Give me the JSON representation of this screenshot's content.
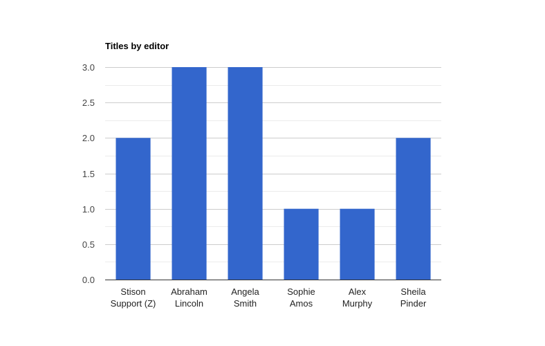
{
  "chart_data": {
    "type": "bar",
    "title": "Titles by editor",
    "xlabel": "",
    "ylabel": "",
    "categories": [
      [
        "Stison",
        "Support (Z)"
      ],
      [
        "Abraham",
        "Lincoln"
      ],
      [
        "Angela",
        "Smith"
      ],
      [
        "Sophie",
        "Amos"
      ],
      [
        "Alex",
        "Murphy"
      ],
      [
        "Sheila",
        "Pinder"
      ]
    ],
    "values": [
      2,
      3,
      3,
      1,
      1,
      2
    ],
    "ylim": [
      0,
      3
    ],
    "yticks": [
      "0.0",
      "0.5",
      "1.0",
      "1.5",
      "2.0",
      "2.5",
      "3.0"
    ],
    "grid": true,
    "legend": "none",
    "bar_color": "#3366cc"
  }
}
